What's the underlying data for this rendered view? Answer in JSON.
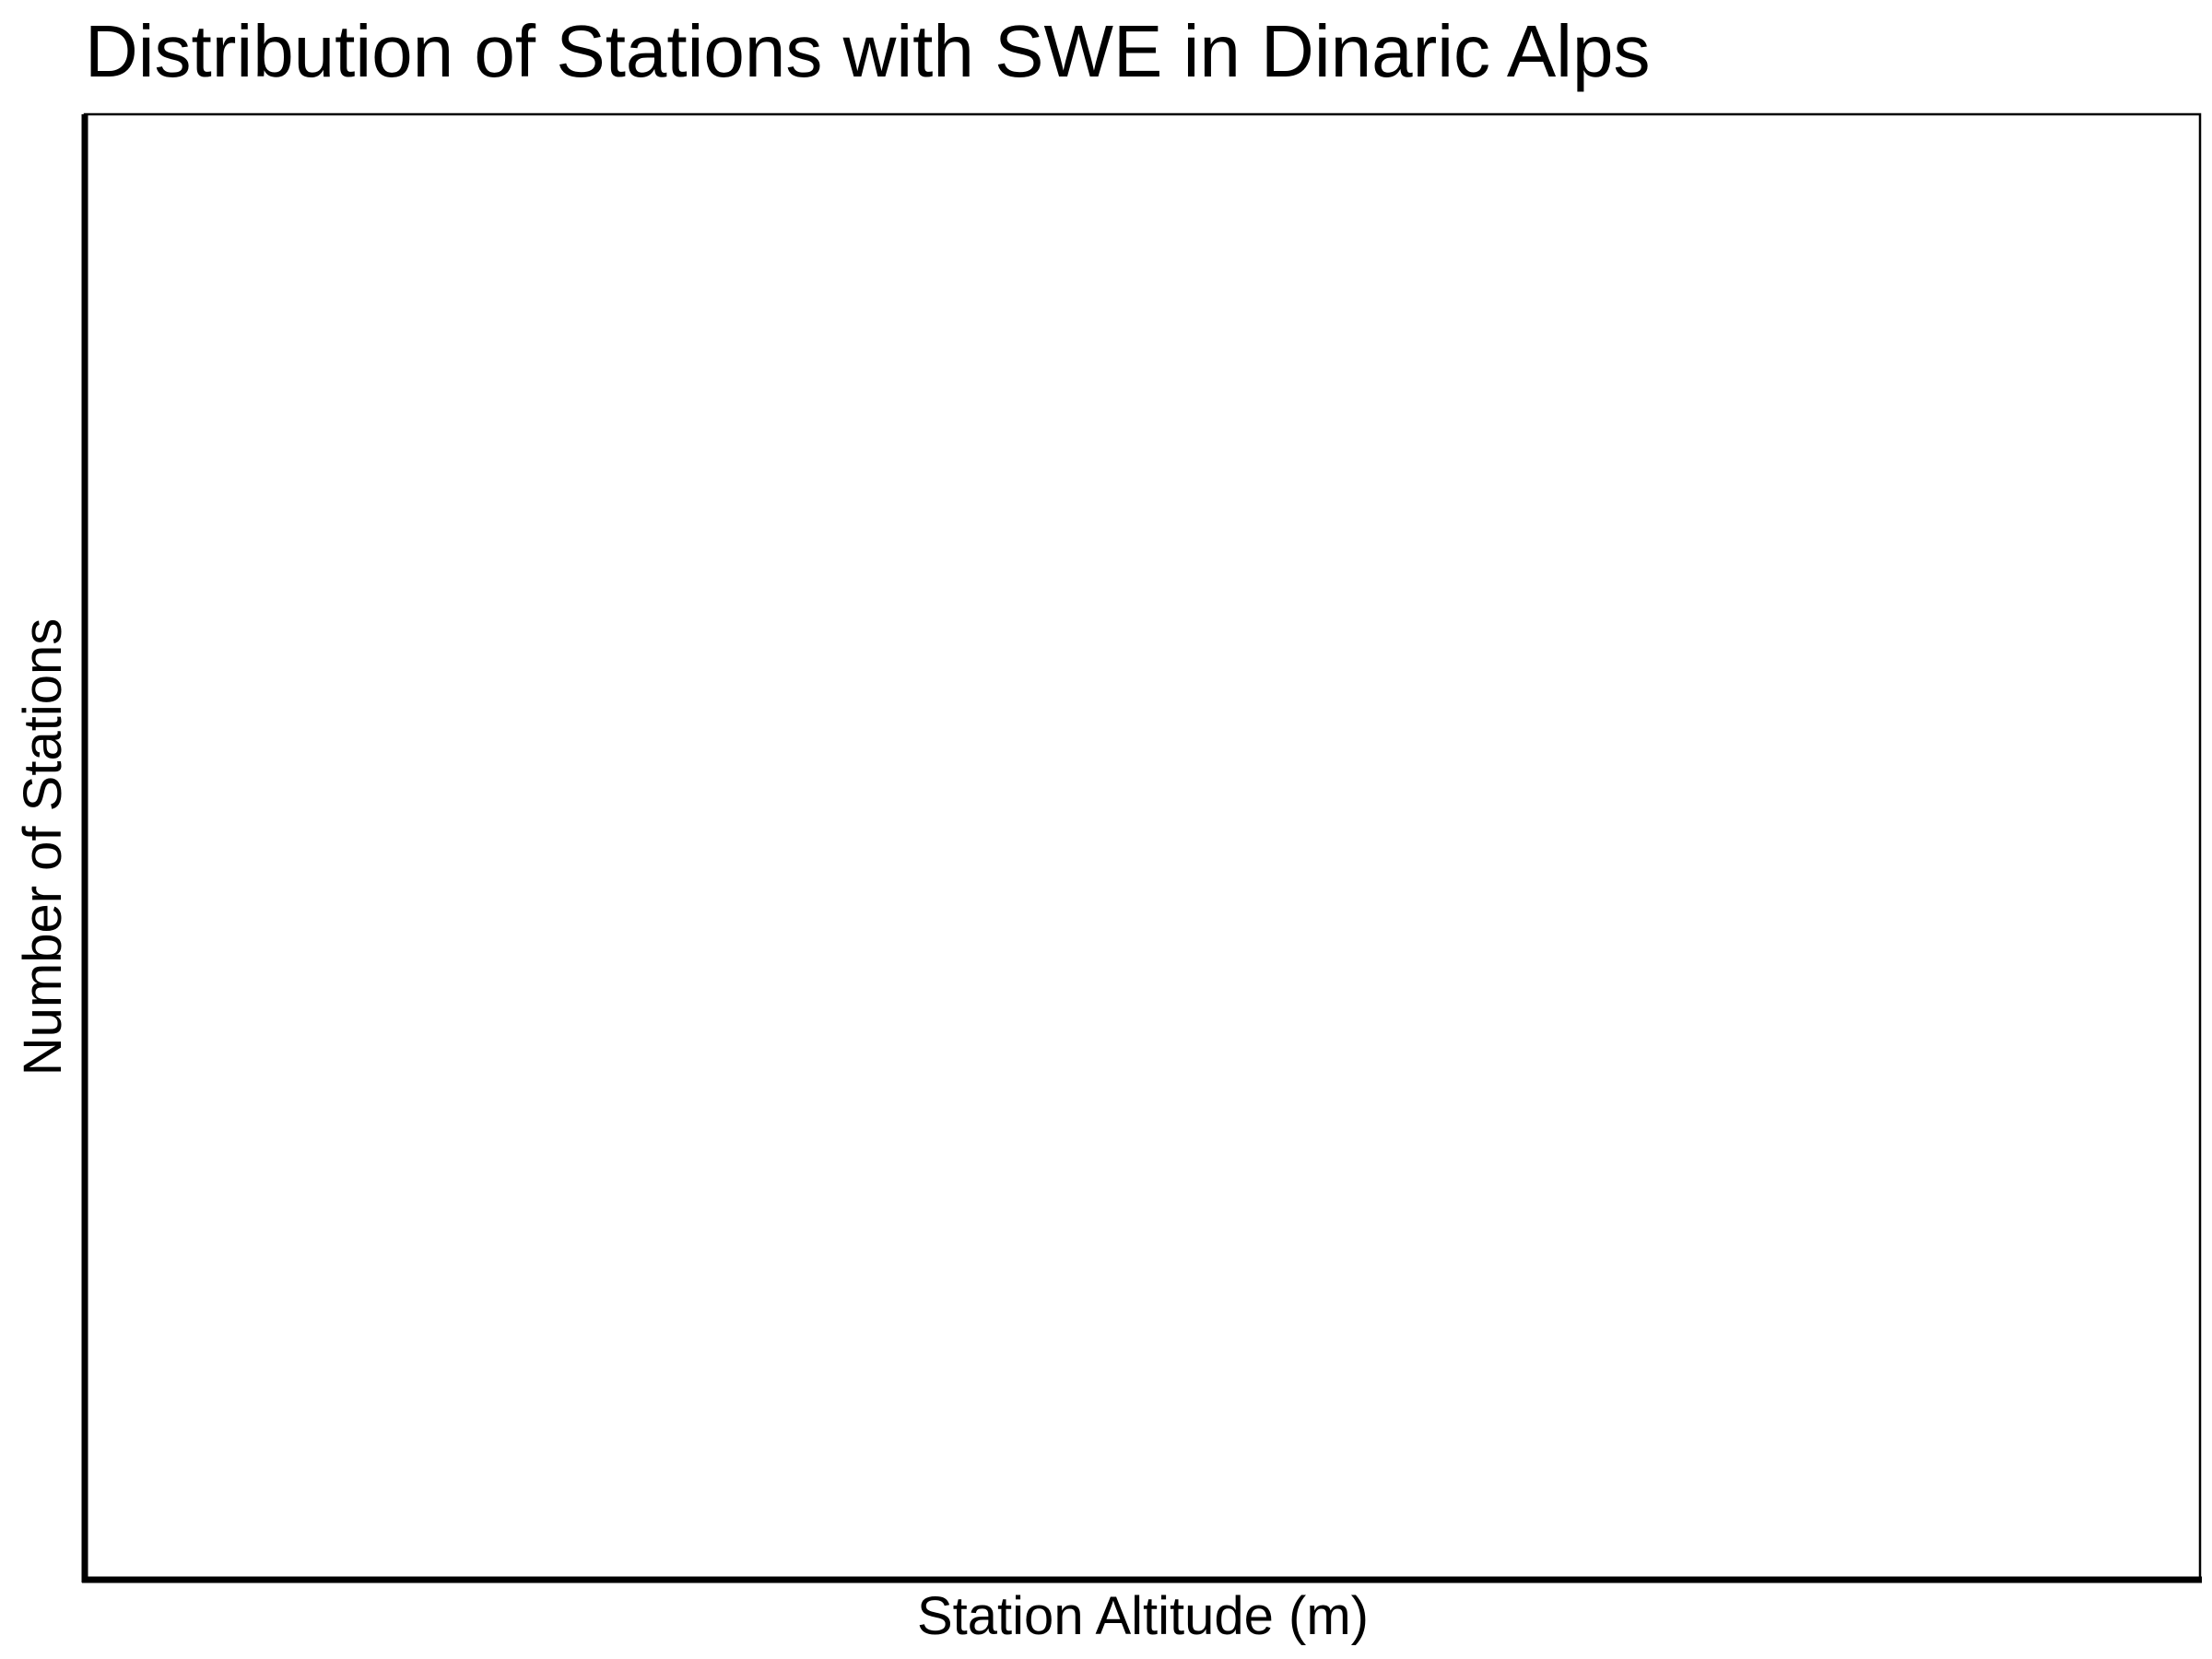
{
  "chart_data": {
    "type": "bar",
    "title": "Distribution of Stations with SWE in Dinaric Alps",
    "xlabel": "Station Altitude (m)",
    "ylabel": "Number of Stations",
    "categories": [],
    "values": [],
    "grid": false,
    "legend": "none"
  }
}
